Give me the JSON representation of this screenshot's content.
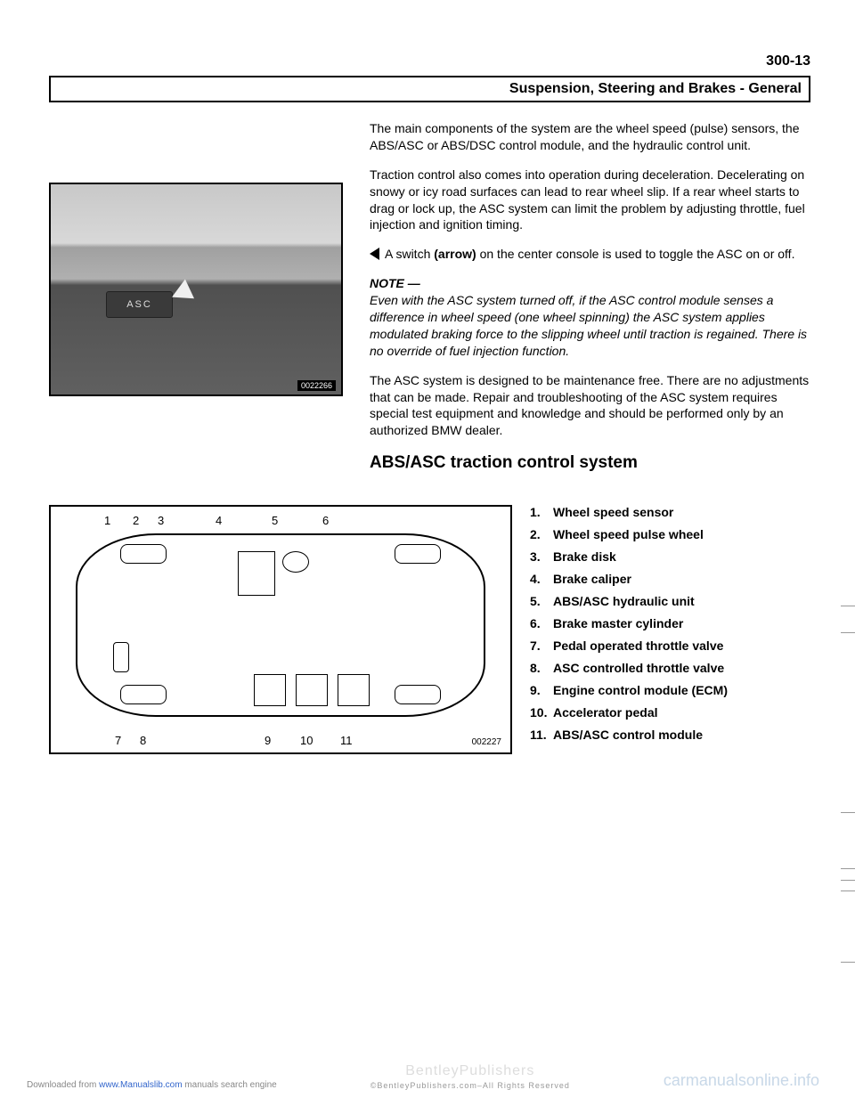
{
  "page_number": "300-13",
  "header": "Suspension, Steering and Brakes - General",
  "paragraphs": {
    "p1": "The main components of the system are the wheel speed (pulse) sensors, the ABS/ASC or ABS/DSC control module, and the hydraulic control unit.",
    "p2": "Traction control also comes into operation during deceleration. Decelerating on snowy or icy road surfaces can lead to rear wheel slip. If a rear wheel starts to drag or lock up, the ASC system can limit the problem by adjusting throttle, fuel injection and ignition timing.",
    "p3_pre": "A switch ",
    "p3_bold": "(arrow)",
    "p3_post": " on the center console is used to toggle the ASC on or off.",
    "note_head": "NOTE —",
    "note_body": "Even with the ASC system turned off, if the ASC control module senses a difference in wheel speed (one wheel spinning) the ASC system applies modulated braking force to the slipping wheel until traction is regained. There is no override of fuel injection function.",
    "p4": "The ASC system is designed to be maintenance free. There are no adjustments that can be made. Repair and troubleshooting of the ASC system requires special test equipment and knowledge and should be performed only by an authorized BMW dealer."
  },
  "photo": {
    "button_label": "ASC",
    "caption": "0022266"
  },
  "section_title": "ABS/ASC traction control system",
  "diagram": {
    "labels_top": [
      "1",
      "2",
      "3",
      "4",
      "5",
      "6"
    ],
    "labels_bottom": [
      "7",
      "8",
      "9",
      "10",
      "11"
    ],
    "caption": "002227"
  },
  "components": [
    {
      "num": "1.",
      "label": "Wheel speed sensor"
    },
    {
      "num": "2.",
      "label": "Wheel speed pulse wheel"
    },
    {
      "num": "3.",
      "label": "Brake disk"
    },
    {
      "num": "4.",
      "label": "Brake caliper"
    },
    {
      "num": "5.",
      "label": "ABS/ASC hydraulic unit"
    },
    {
      "num": "6.",
      "label": "Brake master cylinder"
    },
    {
      "num": "7.",
      "label": "Pedal operated throttle valve"
    },
    {
      "num": "8.",
      "label": "ASC controlled throttle valve"
    },
    {
      "num": "9.",
      "label": "Engine control module (ECM)"
    },
    {
      "num": "10.",
      "label": "Accelerator pedal"
    },
    {
      "num": "11.",
      "label": "ABS/ASC control module"
    }
  ],
  "footer": {
    "left_pre": "Downloaded from ",
    "left_link": "www.Manualslib.com",
    "left_post": " manuals search engine",
    "center_main": "BentleyPublishers",
    "center_sub": ".com",
    "center_rights": "©BentleyPublishers.com–All Rights Reserved",
    "right": "carmanualsonline.info"
  }
}
